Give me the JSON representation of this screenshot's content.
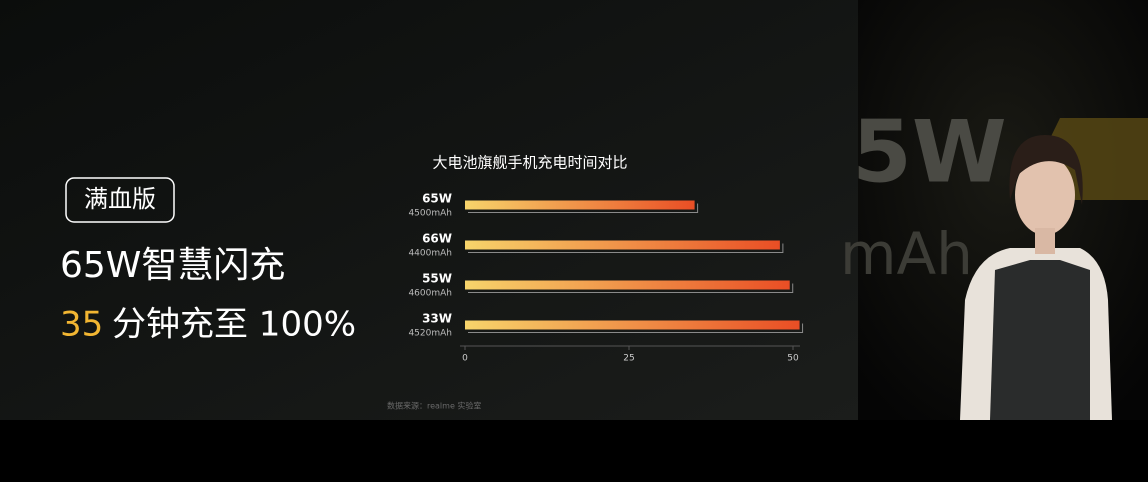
{
  "slide": {
    "badge": "满血版",
    "headline": "65W智慧闪充",
    "highlight_number": "35",
    "highlight_text": "分钟充至 100%",
    "source": "数据来源：realme 实验室"
  },
  "backdrop": {
    "large_text": "5W",
    "sub_text": "mAh"
  },
  "chart_data": {
    "type": "bar",
    "orientation": "horizontal",
    "title": "大电池旗舰手机充电时间对比",
    "categories": [
      "65W",
      "66W",
      "55W",
      "33W"
    ],
    "sublabels": [
      "4500mAh",
      "4400mAh",
      "4600mAh",
      "4520mAh"
    ],
    "values": [
      35,
      48,
      49.5,
      51
    ],
    "colors": [
      "#f7d46b",
      "#e94e25"
    ],
    "xlim": [
      0,
      50
    ],
    "xticks": [
      0,
      25,
      50
    ],
    "grid": false
  }
}
